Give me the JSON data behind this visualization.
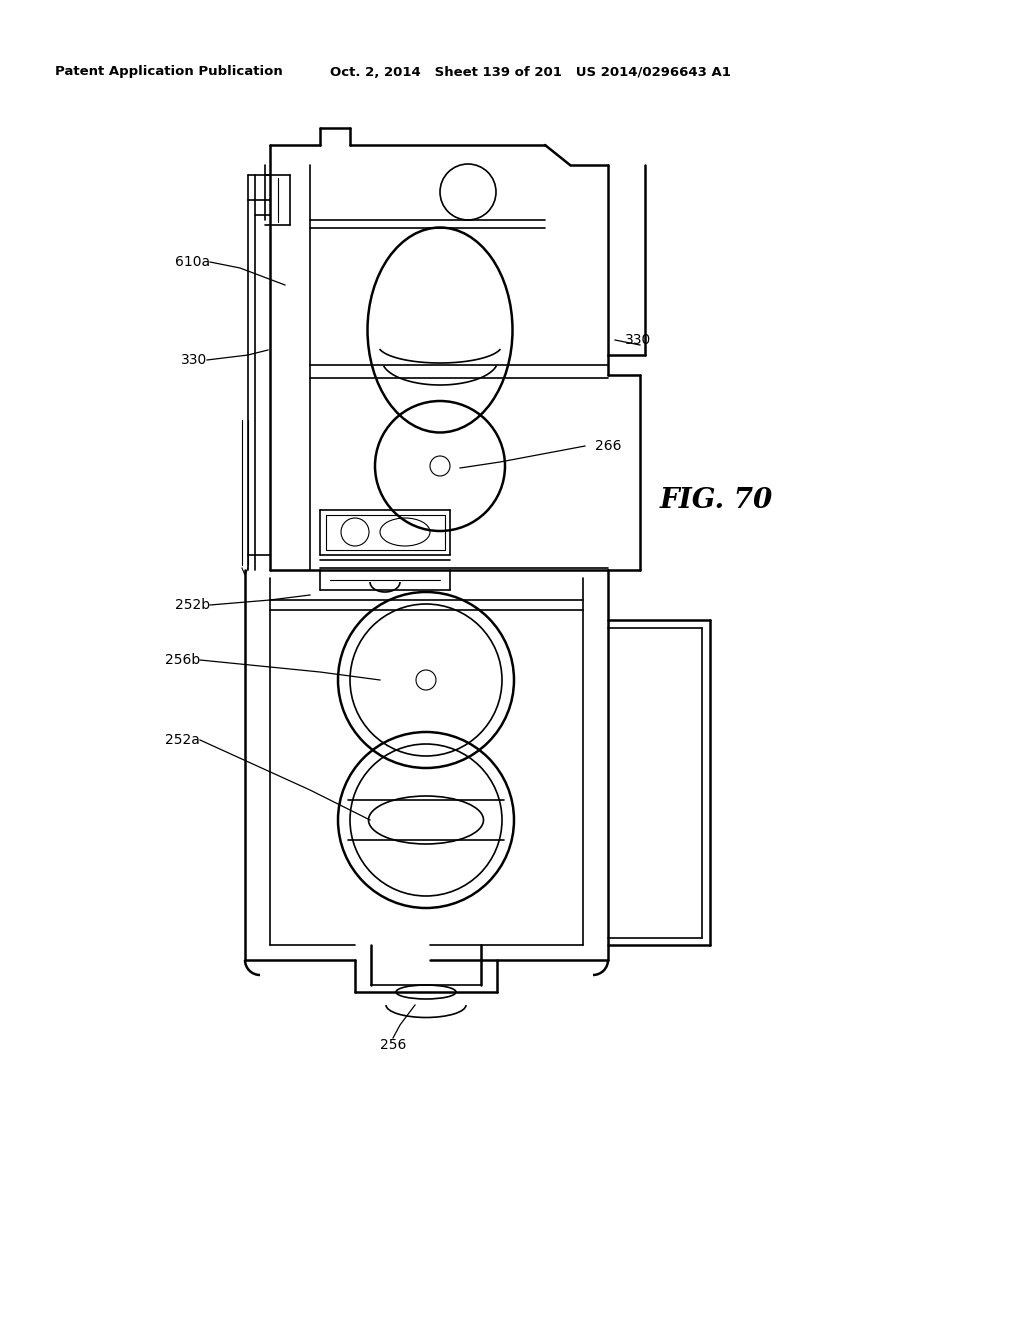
{
  "header_left": "Patent Application Publication",
  "header_center": "Oct. 2, 2014   Sheet 139 of 201   US 2014/0296643 A1",
  "fig_label": "FIG. 70",
  "background": "#ffffff",
  "line_color": "#000000"
}
